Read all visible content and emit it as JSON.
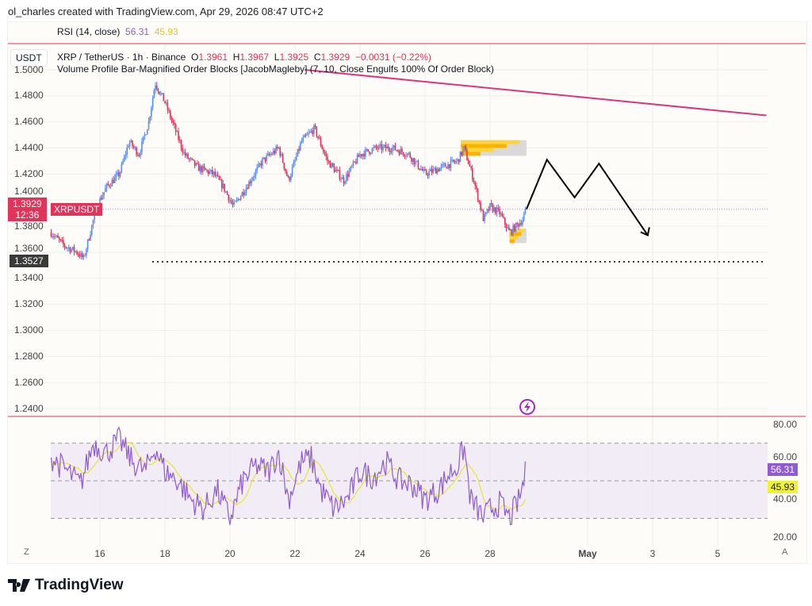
{
  "credit": "ol_charles created with TradingView.com, Apr 29, 2026 08:47 UTC+2",
  "rsi_legend": {
    "label": "RSI (14, close)",
    "value": "56.31",
    "ma": "45.93"
  },
  "currency": "USDT",
  "symbol": {
    "name": "XRP / TetherUS · 1h · Binance",
    "o_label": "O",
    "o": "1.3961",
    "h_label": "H",
    "h": "1.3967",
    "l_label": "L",
    "l": "1.3925",
    "c_label": "C",
    "c": "1.3929",
    "change": "−0.0031 (−0.22%)"
  },
  "indicator": "Volume Profile Bar-Magnified Order Blocks [JacobMagleby] (7, 10, Close Engulfs 100% Of Order Block)",
  "price_axis": [
    "1.5000",
    "1.4800",
    "1.4600",
    "1.4400",
    "1.4200",
    "1.4000",
    "1.3800",
    "1.3600",
    "1.3400",
    "1.3200",
    "1.3000",
    "1.2800",
    "1.2600",
    "1.2400"
  ],
  "price_tag": {
    "price": "1.3929",
    "countdown": "12:36",
    "symbol": "XRPUSDT"
  },
  "low_tag": "1.3527",
  "rsi_axis": [
    "80.00",
    "60.00",
    "40.00",
    "20.00"
  ],
  "rsi_tags": {
    "rsi": "56.31",
    "ma": "45.93"
  },
  "x_axis": [
    {
      "label": "16",
      "day": 16
    },
    {
      "label": "18",
      "day": 18
    },
    {
      "label": "20",
      "day": 20
    },
    {
      "label": "22",
      "day": 22
    },
    {
      "label": "24",
      "day": 24
    },
    {
      "label": "26",
      "day": 26
    },
    {
      "label": "28",
      "day": 28
    },
    {
      "label": "May",
      "day": 31
    },
    {
      "label": "3",
      "day": 33
    },
    {
      "label": "5",
      "day": 35
    }
  ],
  "z_button": "Z",
  "a_button": "A",
  "logo": "TradingView",
  "colors": {
    "up": "#5b8def",
    "down": "#e0345a",
    "rsi": "#8e5bd1",
    "rsi_ma": "#e6e640",
    "trend": "#e0347a"
  },
  "chart_data": {
    "type": "candlestick",
    "xunit": "day of April 2026",
    "price_keypoints": [
      [
        14.5,
        1.375
      ],
      [
        14.9,
        1.365
      ],
      [
        15.3,
        1.36
      ],
      [
        15.5,
        1.355
      ],
      [
        15.7,
        1.375
      ],
      [
        15.9,
        1.395
      ],
      [
        16.2,
        1.41
      ],
      [
        16.6,
        1.42
      ],
      [
        16.9,
        1.445
      ],
      [
        17.2,
        1.435
      ],
      [
        17.5,
        1.46
      ],
      [
        17.7,
        1.49
      ],
      [
        18.0,
        1.475
      ],
      [
        18.3,
        1.455
      ],
      [
        18.6,
        1.435
      ],
      [
        19.0,
        1.425
      ],
      [
        19.5,
        1.42
      ],
      [
        19.8,
        1.41
      ],
      [
        20.1,
        1.395
      ],
      [
        20.5,
        1.41
      ],
      [
        21.0,
        1.43
      ],
      [
        21.5,
        1.44
      ],
      [
        21.8,
        1.415
      ],
      [
        22.2,
        1.445
      ],
      [
        22.6,
        1.455
      ],
      [
        23.0,
        1.43
      ],
      [
        23.5,
        1.415
      ],
      [
        24.0,
        1.435
      ],
      [
        24.5,
        1.44
      ],
      [
        25.0,
        1.44
      ],
      [
        25.5,
        1.435
      ],
      [
        26.0,
        1.42
      ],
      [
        26.5,
        1.425
      ],
      [
        27.0,
        1.43
      ],
      [
        27.2,
        1.44
      ],
      [
        27.5,
        1.415
      ],
      [
        27.8,
        1.385
      ],
      [
        28.0,
        1.395
      ],
      [
        28.3,
        1.39
      ],
      [
        28.6,
        1.375
      ],
      [
        28.8,
        1.38
      ],
      [
        29.0,
        1.385
      ],
      [
        29.12,
        1.393
      ]
    ],
    "rsi_keypoints": [
      [
        14.5,
        62
      ],
      [
        15.0,
        55
      ],
      [
        15.4,
        48
      ],
      [
        15.8,
        70
      ],
      [
        16.2,
        65
      ],
      [
        16.6,
        72
      ],
      [
        17.0,
        60
      ],
      [
        17.4,
        55
      ],
      [
        17.7,
        68
      ],
      [
        18.0,
        55
      ],
      [
        18.4,
        50
      ],
      [
        18.8,
        40
      ],
      [
        19.2,
        35
      ],
      [
        19.6,
        45
      ],
      [
        20.0,
        30
      ],
      [
        20.4,
        50
      ],
      [
        20.8,
        58
      ],
      [
        21.2,
        55
      ],
      [
        21.5,
        65
      ],
      [
        21.8,
        40
      ],
      [
        22.2,
        60
      ],
      [
        22.5,
        62
      ],
      [
        22.8,
        45
      ],
      [
        23.2,
        35
      ],
      [
        23.6,
        40
      ],
      [
        24.0,
        55
      ],
      [
        24.4,
        52
      ],
      [
        24.8,
        60
      ],
      [
        25.2,
        50
      ],
      [
        25.6,
        48
      ],
      [
        26.0,
        40
      ],
      [
        26.4,
        45
      ],
      [
        26.8,
        55
      ],
      [
        27.0,
        58
      ],
      [
        27.2,
        68
      ],
      [
        27.4,
        40
      ],
      [
        27.8,
        30
      ],
      [
        28.0,
        35
      ],
      [
        28.3,
        38
      ],
      [
        28.6,
        30
      ],
      [
        28.9,
        40
      ],
      [
        29.12,
        56.31
      ]
    ],
    "rsi_bands": [
      30,
      70
    ],
    "ylim": [
      1.24,
      1.5
    ],
    "rsi_ylim": [
      20,
      80
    ],
    "key_level": 1.3527,
    "last_price": 1.3929,
    "forecast_path": [
      [
        29.12,
        1.393
      ],
      [
        29.75,
        1.431
      ],
      [
        30.6,
        1.402
      ],
      [
        31.35,
        1.428
      ],
      [
        32.85,
        1.373
      ]
    ],
    "trendline": [
      [
        22.3,
        1.5
      ],
      [
        36.5,
        1.465
      ]
    ],
    "order_blocks": [
      {
        "from": 27.1,
        "to": 29.12,
        "top": 1.446,
        "bottom": 1.434
      },
      {
        "from": 28.6,
        "to": 29.12,
        "top": 1.378,
        "bottom": 1.367
      }
    ]
  }
}
